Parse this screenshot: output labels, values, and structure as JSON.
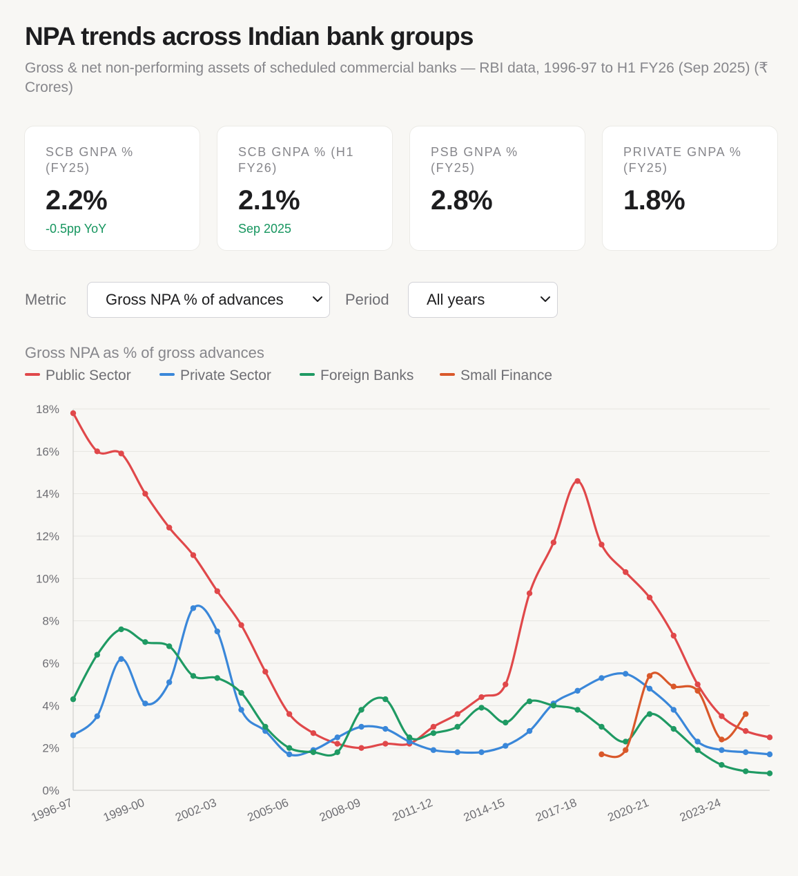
{
  "header": {
    "title": "NPA trends across Indian bank groups",
    "subtitle": "Gross & net non-performing assets of scheduled commercial banks — RBI data, 1996-97 to H1 FY26 (Sep 2025) (₹ Crores)"
  },
  "cards": [
    {
      "label": "SCB GNPA % (FY25)",
      "value": "2.2%",
      "sub": "-0.5pp YoY"
    },
    {
      "label": "SCB GNPA % (H1 FY26)",
      "value": "2.1%",
      "sub": "Sep 2025"
    },
    {
      "label": "PSB GNPA % (FY25)",
      "value": "2.8%",
      "sub": ""
    },
    {
      "label": "PRIVATE GNPA % (FY25)",
      "value": "1.8%",
      "sub": ""
    }
  ],
  "controls": {
    "metric_label": "Metric",
    "metric_value": "Gross NPA % of advances",
    "period_label": "Period",
    "period_value": "All years"
  },
  "colors": {
    "public": "#e0484a",
    "private": "#3a87d9",
    "foreign": "#1f9a63",
    "small": "#d9582a",
    "positive": "#15955e"
  },
  "chart_data": {
    "type": "line",
    "title": "Gross NPA as % of gross advances",
    "xlabel": "",
    "ylabel": "",
    "ylim": [
      0,
      18
    ],
    "yticks": [
      0,
      2,
      4,
      6,
      8,
      10,
      12,
      14,
      16,
      18
    ],
    "ytick_suffix": "%",
    "legend_position": "top-left",
    "categories": [
      "1996-97",
      "1997-98",
      "1998-99",
      "1999-00",
      "2000-01",
      "2001-02",
      "2002-03",
      "2003-04",
      "2004-05",
      "2005-06",
      "2006-07",
      "2007-08",
      "2008-09",
      "2009-10",
      "2010-11",
      "2011-12",
      "2012-13",
      "2013-14",
      "2014-15",
      "2015-16",
      "2016-17",
      "2017-18",
      "2018-19",
      "2019-20",
      "2020-21",
      "2021-22",
      "2022-23",
      "2023-24",
      "2024-25",
      "H1 FY26"
    ],
    "tick_labels": [
      "1996-97",
      "1999-00",
      "2002-03",
      "2005-06",
      "2008-09",
      "2011-12",
      "2014-15",
      "2017-18",
      "2020-21",
      "2023-24"
    ],
    "series": [
      {
        "name": "Public Sector",
        "color_key": "public",
        "values": [
          17.8,
          16.0,
          15.9,
          14.0,
          12.4,
          11.1,
          9.4,
          7.8,
          5.6,
          3.6,
          2.7,
          2.2,
          2.0,
          2.2,
          2.2,
          3.0,
          3.6,
          4.4,
          5.0,
          9.3,
          11.7,
          14.6,
          11.6,
          10.3,
          9.1,
          7.3,
          5.0,
          3.5,
          2.8,
          2.5
        ]
      },
      {
        "name": "Private Sector",
        "color_key": "private",
        "values": [
          2.6,
          3.5,
          6.2,
          4.1,
          5.1,
          8.6,
          7.5,
          3.8,
          2.8,
          1.7,
          1.9,
          2.5,
          3.0,
          2.9,
          2.3,
          1.9,
          1.8,
          1.8,
          2.1,
          2.8,
          4.1,
          4.7,
          5.3,
          5.5,
          4.8,
          3.8,
          2.3,
          1.9,
          1.8,
          1.7
        ]
      },
      {
        "name": "Foreign Banks",
        "color_key": "foreign",
        "values": [
          4.3,
          6.4,
          7.6,
          7.0,
          6.8,
          5.4,
          5.3,
          4.6,
          3.0,
          2.0,
          1.8,
          1.8,
          3.8,
          4.3,
          2.5,
          2.7,
          3.0,
          3.9,
          3.2,
          4.2,
          4.0,
          3.8,
          3.0,
          2.3,
          3.6,
          2.9,
          1.9,
          1.2,
          0.9,
          0.8
        ]
      },
      {
        "name": "Small Finance",
        "color_key": "small",
        "values": [
          null,
          null,
          null,
          null,
          null,
          null,
          null,
          null,
          null,
          null,
          null,
          null,
          null,
          null,
          null,
          null,
          null,
          null,
          null,
          null,
          null,
          null,
          1.7,
          1.9,
          5.4,
          4.9,
          4.7,
          2.4,
          3.6,
          null
        ]
      }
    ]
  }
}
